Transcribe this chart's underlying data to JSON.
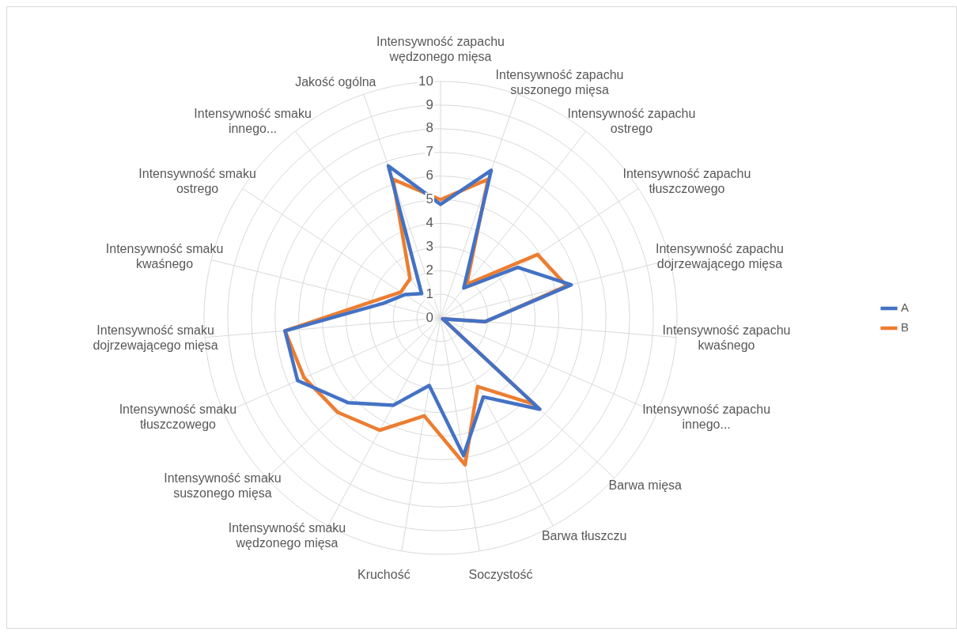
{
  "chart_data": {
    "type": "radar",
    "categories": [
      "Intensywność zapachu wędzonego mięsa",
      "Intensywność zapachu suszonego mięsa",
      "Intensywność zapachu ostrego",
      "Intensywność zapachu tłuszczowego",
      "Intensywność zapachu dojrzewającego mięsa",
      "Intensywność zapachu kwaśnego",
      "Intensywność zapachu innego...",
      "Barwa mięsa",
      "Barwa tłuszczu",
      "Soczystość",
      "Kruchość",
      "Intensywność smaku wędzonego mięsa",
      "Intensywność smaku suszonego mięsa",
      "Intensywność smaku tłuszczowego",
      "Intensywność smaku dojrzewającego mięsa",
      "Intensywność smaku kwaśnego",
      "Intensywność smaku ostrego",
      "Intensywność smaku innego...",
      "Jakość ogólna"
    ],
    "series": [
      {
        "name": "A",
        "color": "#4472c4",
        "values": [
          4.8,
          6.6,
          1.6,
          3.9,
          5.7,
          1.9,
          0.1,
          5.7,
          3.8,
          5.9,
          2.9,
          4.2,
          5.3,
          6.6,
          6.6,
          2.5,
          1.8,
          1.3,
          6.8
        ]
      },
      {
        "name": "B",
        "color": "#ed7d31",
        "values": [
          5.0,
          6.2,
          1.8,
          4.9,
          5.5,
          1.9,
          0.1,
          5.4,
          3.3,
          6.3,
          4.2,
          5.4,
          5.9,
          6.3,
          6.6,
          2.9,
          2.0,
          2.1,
          6.2
        ]
      }
    ],
    "ylim": [
      0,
      10
    ],
    "yticks": [
      0,
      1,
      2,
      3,
      4,
      5,
      6,
      7,
      8,
      9,
      10
    ],
    "grid": true,
    "legend": "right",
    "marker": "none"
  }
}
